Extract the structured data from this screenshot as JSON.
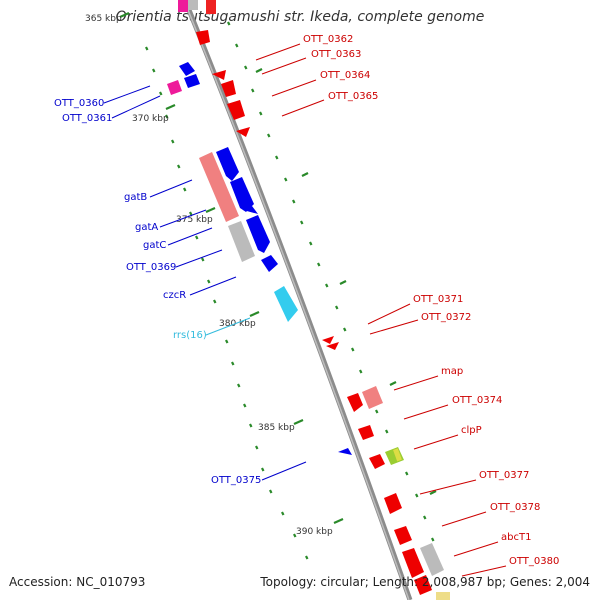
{
  "title": "Orientia tsutsugamushi str. Ikeda, complete genome",
  "footer": {
    "accession": "Accession: NC_010793",
    "summary": "Topology: circular; Length: 2,008,987 bp; Genes: 2,004"
  },
  "scale_labels": [
    {
      "text": "365 kbp",
      "kbp": 365
    },
    {
      "text": "370 kbp",
      "kbp": 370
    },
    {
      "text": "375 kbp",
      "kbp": 375
    },
    {
      "text": "380 kbp",
      "kbp": 380
    },
    {
      "text": "385 kbp",
      "kbp": 385
    },
    {
      "text": "390 kbp",
      "kbp": 390
    }
  ],
  "colors": {
    "backbone": "#8c8c8c",
    "forward_gene": "#0000ee",
    "reverse_gene": "#ee0000",
    "rrna": "#33ccee",
    "pseudo_light": "#f08080",
    "grey_feature": "#bbbbbb",
    "pink_feature": "#ee1a9a",
    "tick": "#2a8a2a"
  },
  "gene_labels_left": [
    {
      "text": "OTT_0360",
      "color": "#0000cc"
    },
    {
      "text": "OTT_0361",
      "color": "#0000cc"
    },
    {
      "text": "gatB",
      "color": "#0000cc"
    },
    {
      "text": "gatA",
      "color": "#0000cc"
    },
    {
      "text": "gatC",
      "color": "#0000cc"
    },
    {
      "text": "OTT_0369",
      "color": "#0000cc"
    },
    {
      "text": "czcR",
      "color": "#0000cc"
    },
    {
      "text": "rrs(16)",
      "color": "#33bbdd"
    },
    {
      "text": "OTT_0375",
      "color": "#0000cc"
    }
  ],
  "gene_labels_right": [
    {
      "text": "OTT_0362",
      "color": "#cc0000"
    },
    {
      "text": "OTT_0363",
      "color": "#cc0000"
    },
    {
      "text": "OTT_0364",
      "color": "#cc0000"
    },
    {
      "text": "OTT_0365",
      "color": "#cc0000"
    },
    {
      "text": "OTT_0371",
      "color": "#cc0000"
    },
    {
      "text": "OTT_0372",
      "color": "#cc0000"
    },
    {
      "text": "map",
      "color": "#cc0000"
    },
    {
      "text": "OTT_0374",
      "color": "#cc0000"
    },
    {
      "text": "clpP",
      "color": "#cc0000"
    },
    {
      "text": "OTT_0377",
      "color": "#cc0000"
    },
    {
      "text": "OTT_0378",
      "color": "#cc0000"
    },
    {
      "text": "abcT1",
      "color": "#cc0000"
    },
    {
      "text": "OTT_0380",
      "color": "#cc0000"
    }
  ]
}
